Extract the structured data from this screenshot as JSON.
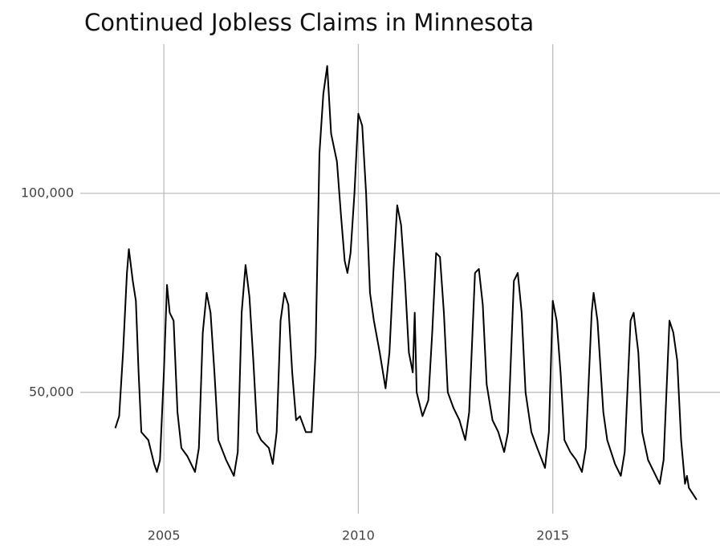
{
  "chart_data": {
    "type": "line",
    "title": "Continued Jobless Claims in Minnesota",
    "x": [
      2003.75,
      2003.85,
      2003.95,
      2004.05,
      2004.1,
      2004.2,
      2004.28,
      2004.35,
      2004.42,
      2004.6,
      2004.75,
      2004.82,
      2004.9,
      2005.0,
      2005.08,
      2005.15,
      2005.25,
      2005.35,
      2005.45,
      2005.6,
      2005.8,
      2005.9,
      2006.0,
      2006.1,
      2006.2,
      2006.3,
      2006.4,
      2006.6,
      2006.8,
      2006.9,
      2007.0,
      2007.1,
      2007.2,
      2007.3,
      2007.4,
      2007.5,
      2007.7,
      2007.8,
      2007.9,
      2008.0,
      2008.1,
      2008.2,
      2008.3,
      2008.4,
      2008.5,
      2008.65,
      2008.8,
      2008.9,
      2009.0,
      2009.1,
      2009.2,
      2009.3,
      2009.45,
      2009.55,
      2009.65,
      2009.72,
      2009.8,
      2009.9,
      2010.0,
      2010.1,
      2010.2,
      2010.3,
      2010.4,
      2010.55,
      2010.7,
      2010.8,
      2010.9,
      2011.0,
      2011.1,
      2011.2,
      2011.3,
      2011.4,
      2011.45,
      2011.5,
      2011.65,
      2011.8,
      2011.9,
      2012.0,
      2012.1,
      2012.2,
      2012.3,
      2012.45,
      2012.6,
      2012.75,
      2012.85,
      2013.0,
      2013.1,
      2013.2,
      2013.3,
      2013.45,
      2013.6,
      2013.75,
      2013.85,
      2014.0,
      2014.1,
      2014.2,
      2014.3,
      2014.45,
      2014.6,
      2014.8,
      2014.9,
      2015.0,
      2015.1,
      2015.2,
      2015.3,
      2015.45,
      2015.6,
      2015.75,
      2015.85,
      2016.0,
      2016.05,
      2016.15,
      2016.3,
      2016.4,
      2016.6,
      2016.75,
      2016.85,
      2017.0,
      2017.08,
      2017.2,
      2017.3,
      2017.45,
      2017.6,
      2017.75,
      2017.85,
      2018.0,
      2018.1,
      2018.2,
      2018.3,
      2018.4,
      2018.45,
      2018.5,
      2018.7
    ],
    "values": [
      41000,
      44000,
      60000,
      80000,
      86000,
      78000,
      73000,
      55000,
      40000,
      38000,
      32000,
      30000,
      33000,
      55000,
      77000,
      70000,
      68000,
      45000,
      36000,
      34000,
      30000,
      36000,
      65000,
      75000,
      70000,
      55000,
      38000,
      33000,
      29000,
      35000,
      70000,
      82000,
      74000,
      58000,
      40000,
      38000,
      36000,
      32000,
      40000,
      68000,
      75000,
      72000,
      55000,
      43000,
      44000,
      40000,
      40000,
      60000,
      110000,
      125000,
      132000,
      115000,
      108000,
      95000,
      83000,
      80000,
      85000,
      100000,
      120000,
      117000,
      100000,
      75000,
      68000,
      60000,
      51000,
      60000,
      80000,
      97000,
      92000,
      78000,
      60000,
      55000,
      70000,
      50000,
      44000,
      48000,
      65000,
      85000,
      84000,
      70000,
      50000,
      46000,
      43000,
      38000,
      45000,
      80000,
      81000,
      72000,
      52000,
      43000,
      40000,
      35000,
      40000,
      78000,
      80000,
      70000,
      50000,
      40000,
      36000,
      31000,
      40000,
      73000,
      68000,
      55000,
      38000,
      35000,
      33000,
      30000,
      36000,
      70000,
      75000,
      68000,
      45000,
      38000,
      32000,
      29000,
      35000,
      68000,
      70000,
      60000,
      40000,
      33000,
      30000,
      27000,
      33000,
      68000,
      65000,
      58000,
      38000,
      27000,
      29000,
      26000,
      23000
    ],
    "color": "#000000",
    "xlim": [
      2002.85,
      2019.3
    ],
    "ylim": [
      19500,
      137500
    ],
    "xticks": [
      2005,
      2010,
      2015
    ],
    "yticks": [
      {
        "value": 50000,
        "label": "50,000"
      },
      {
        "value": 100000,
        "label": "100,000"
      }
    ],
    "grid": true
  }
}
